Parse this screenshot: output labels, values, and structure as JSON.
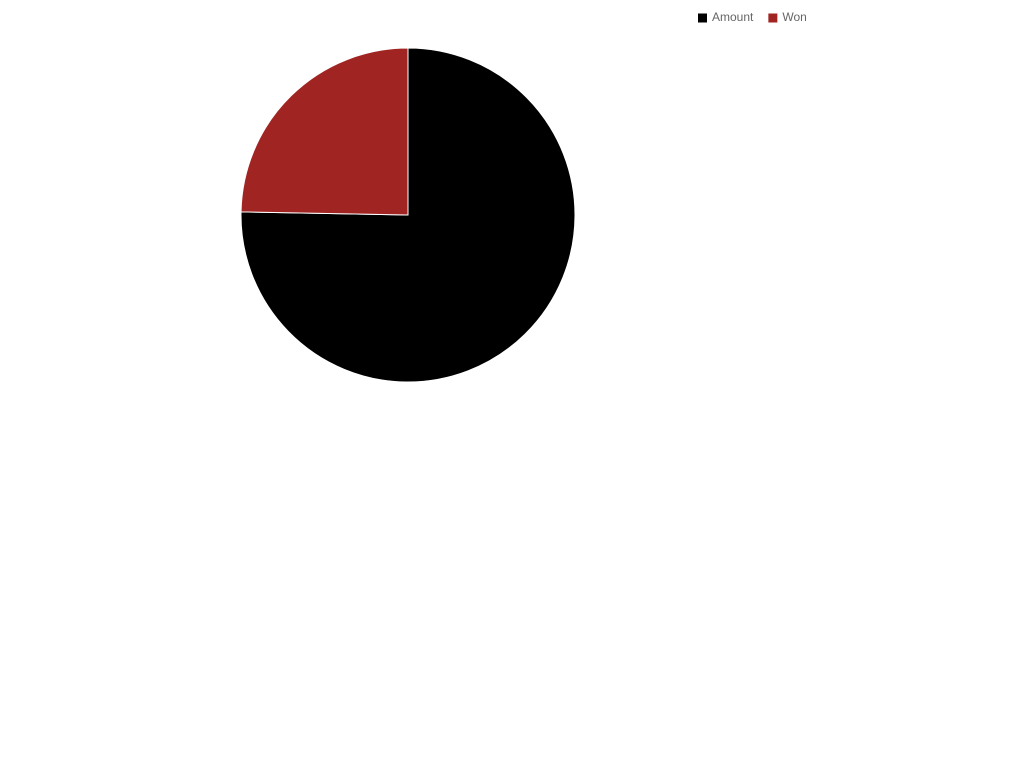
{
  "chart_data": {
    "type": "pie",
    "categories": [
      "Amount",
      "Won"
    ],
    "values": [
      75.3,
      24.7
    ],
    "colors": [
      "#000000",
      "#a02422"
    ],
    "legend": "top-right"
  }
}
